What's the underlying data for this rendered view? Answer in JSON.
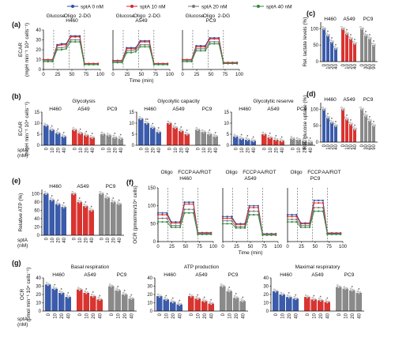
{
  "legend": [
    {
      "name": "sptA 0 nM",
      "color": "#2c4fa3"
    },
    {
      "name": "sptA 10 nM",
      "color": "#d8262a"
    },
    {
      "name": "sptA 20 nM",
      "color": "#777777"
    },
    {
      "name": "sptA 40 nM",
      "color": "#2f8a3c"
    }
  ],
  "colors": {
    "H460": "#3b5bab",
    "A549": "#d93430",
    "PC9": "#8a8a8a"
  },
  "panels": {
    "a": {
      "label": "(a)",
      "ylabel": "ECAR\n(mpH min⁻¹ 10⁴ cells⁻¹)",
      "yticks": [
        0,
        10,
        20,
        30,
        40
      ],
      "xticks": [
        0,
        25,
        50,
        75,
        100
      ],
      "xlabel": "Time (min)",
      "treatments": [
        "Glucose",
        "Oligo",
        "2-DG"
      ],
      "cells": [
        "H460",
        "A549",
        "PC9"
      ]
    },
    "b": {
      "label": "(b)",
      "ylabel": "ECAR\n(mpH min⁻¹ 10⁴ cells⁻¹)",
      "titles": [
        "Glycolysis",
        "Glycolytic capacity",
        "Glycolytic reserve"
      ],
      "yticks": [
        0,
        5,
        10,
        15
      ],
      "doses": [
        "0",
        "10",
        "20",
        "40"
      ],
      "xlabel": "sptA\n(nM)"
    },
    "c": {
      "label": "(c)",
      "ylabel": "Rel. lactate levels (%)",
      "yticks": [
        0,
        50,
        100
      ],
      "doses": [
        "0",
        "10",
        "20",
        "40"
      ],
      "pc9_doses": [
        "0",
        "30",
        "60",
        "90"
      ]
    },
    "d": {
      "label": "(d)",
      "ylabel": "Rel. glucose uptake (%)",
      "yticks": [
        0,
        50,
        100
      ],
      "doses": [
        "0",
        "10",
        "20",
        "40"
      ],
      "pc9_doses": [
        "0",
        "30",
        "60",
        "90"
      ]
    },
    "e": {
      "label": "(e)",
      "ylabel": "Relative ATP (%)",
      "yticks": [
        0,
        20,
        40,
        60,
        80,
        100
      ],
      "doses": [
        "0",
        "10",
        "20",
        "40"
      ],
      "xlabel": "sptA\n(nM)"
    },
    "f": {
      "label": "(f)",
      "ylabel": "OCR (pmol/min/10⁴ cells)",
      "yticks": [
        0,
        50,
        100,
        150
      ],
      "xticks": [
        0,
        25,
        50,
        75,
        100
      ],
      "xlabel": "Time (min)",
      "treatments": [
        "Oligo",
        "FCCP",
        "AA/ROT"
      ]
    },
    "g": {
      "label": "(g)",
      "ylabel": "OCR\n(pmol min⁻¹ 10⁴ cells⁻¹)",
      "titles": [
        "Basal respiration",
        "ATP production",
        "Maximal respiratory"
      ],
      "yticks": [
        0,
        10,
        20,
        30,
        40
      ],
      "doses": [
        "0",
        "10",
        "20",
        "40"
      ],
      "xlabel": "sptA\n(nM)"
    }
  },
  "chart_data": [
    {
      "panel": "a",
      "type": "line",
      "x": [
        0,
        8,
        16,
        24,
        32,
        40,
        48,
        56,
        64,
        72,
        80,
        88,
        96
      ],
      "series_by_cell": {
        "H460": [
          [
            10,
            10,
            10,
            25,
            26,
            26,
            34,
            34,
            34,
            6,
            6,
            6,
            6
          ],
          [
            10,
            10,
            10,
            24,
            25,
            25,
            33,
            33,
            33,
            6,
            6,
            6,
            6
          ],
          [
            9,
            9,
            9,
            22,
            22,
            23,
            30,
            30,
            30,
            5,
            5,
            5,
            5
          ],
          [
            8,
            8,
            8,
            20,
            20,
            21,
            28,
            28,
            28,
            5,
            5,
            5,
            5
          ]
        ],
        "A549": [
          [
            9,
            9,
            9,
            22,
            22,
            22,
            29,
            29,
            29,
            6,
            6,
            6,
            6
          ],
          [
            9,
            9,
            9,
            21,
            21,
            21,
            28,
            28,
            28,
            6,
            6,
            6,
            6
          ],
          [
            8,
            8,
            8,
            19,
            19,
            20,
            25,
            25,
            25,
            5,
            5,
            5,
            5
          ],
          [
            7,
            7,
            7,
            17,
            17,
            18,
            23,
            23,
            23,
            5,
            5,
            5,
            5
          ]
        ],
        "PC9": [
          [
            10,
            10,
            10,
            24,
            24,
            24,
            32,
            32,
            32,
            7,
            7,
            7,
            7
          ],
          [
            10,
            10,
            10,
            23,
            23,
            23,
            31,
            31,
            31,
            7,
            7,
            7,
            7
          ],
          [
            9,
            9,
            9,
            21,
            21,
            21,
            28,
            28,
            28,
            6,
            6,
            6,
            6
          ],
          [
            8,
            8,
            8,
            19,
            19,
            19,
            26,
            26,
            26,
            6,
            6,
            6,
            6
          ]
        ]
      }
    },
    {
      "panel": "b",
      "type": "bar",
      "cells": [
        "H460",
        "A549",
        "PC9"
      ],
      "groups": [
        {
          "title": "Glycolysis",
          "values": {
            "H460": [
              9,
              7,
              5.5,
              4
            ],
            "A549": [
              7,
              5.5,
              4.5,
              3.5
            ],
            "PC9": [
              5,
              4.5,
              3.5,
              3
            ]
          },
          "stars": {
            "H460": [
              "",
              "*",
              "*",
              "*"
            ],
            "A549": [
              "",
              "*",
              "*",
              "*"
            ],
            "PC9": [
              "",
              "",
              "*",
              "*"
            ]
          }
        },
        {
          "title": "Glycolytic capacity",
          "values": {
            "H460": [
              12,
              10,
              8,
              6
            ],
            "A549": [
              10,
              8,
              6.5,
              5
            ],
            "PC9": [
              7,
              6,
              5,
              4
            ]
          },
          "stars": {
            "H460": [
              "",
              "**",
              "*",
              "*"
            ],
            "A549": [
              "",
              "*",
              "*",
              "*"
            ],
            "PC9": [
              "",
              "",
              "*",
              "*"
            ]
          }
        },
        {
          "title": "Glycolytic reserve",
          "values": {
            "H460": [
              4,
              3,
              2.5,
              2
            ],
            "A549": [
              5,
              3.5,
              2.5,
              2
            ],
            "PC9": [
              3,
              2.5,
              2,
              1.5
            ]
          },
          "stars": {
            "H460": [
              "",
              "*",
              "*",
              "*"
            ],
            "A549": [
              "",
              "*",
              "*",
              "*"
            ],
            "PC9": [
              "",
              "",
              "*",
              "*"
            ]
          }
        }
      ]
    },
    {
      "panel": "c",
      "type": "bar",
      "cells": [
        "H460",
        "A549",
        "PC9"
      ],
      "values": {
        "H460": [
          100,
          80,
          60,
          40
        ],
        "A549": [
          100,
          85,
          70,
          55
        ],
        "PC9": [
          100,
          80,
          70,
          50
        ]
      },
      "stars": {
        "H460": [
          "",
          "*",
          "*",
          "*"
        ],
        "A549": [
          "",
          "*",
          "*",
          "*"
        ],
        "PC9": [
          "",
          "*",
          "*",
          "*"
        ]
      }
    },
    {
      "panel": "d",
      "type": "bar",
      "cells": [
        "H460",
        "A549",
        "PC9"
      ],
      "values": {
        "H460": [
          100,
          75,
          60,
          50
        ],
        "A549": [
          100,
          70,
          55,
          40
        ],
        "PC9": [
          100,
          80,
          65,
          50
        ]
      },
      "stars": {
        "H460": [
          "",
          "*",
          "*",
          "*"
        ],
        "A549": [
          "",
          "*",
          "*",
          "*"
        ],
        "PC9": [
          "",
          "*",
          "*",
          "*"
        ]
      }
    },
    {
      "panel": "e",
      "type": "bar",
      "cells": [
        "H460",
        "A549",
        "PC9"
      ],
      "values": {
        "H460": [
          100,
          85,
          75,
          68
        ],
        "A549": [
          100,
          80,
          70,
          60
        ],
        "PC9": [
          100,
          90,
          80,
          75
        ]
      },
      "stars": {
        "H460": [
          "",
          "*",
          "*",
          "*"
        ],
        "A549": [
          "",
          "*",
          "*",
          "*"
        ],
        "PC9": [
          "",
          "*",
          "*",
          "*"
        ]
      }
    },
    {
      "panel": "f",
      "type": "line",
      "x": [
        0,
        8,
        16,
        24,
        32,
        40,
        48,
        56,
        64,
        72,
        80,
        88,
        96
      ],
      "series_by_cell": {
        "H460": [
          [
            80,
            80,
            80,
            55,
            55,
            55,
            110,
            110,
            110,
            25,
            25,
            25,
            25
          ],
          [
            75,
            75,
            75,
            52,
            52,
            52,
            105,
            105,
            105,
            24,
            24,
            24,
            24
          ],
          [
            65,
            65,
            65,
            45,
            45,
            45,
            90,
            90,
            90,
            22,
            22,
            22,
            22
          ],
          [
            55,
            55,
            55,
            40,
            40,
            40,
            80,
            80,
            80,
            20,
            20,
            20,
            20
          ]
        ],
        "A549": [
          [
            70,
            70,
            70,
            50,
            50,
            50,
            100,
            100,
            100,
            22,
            22,
            22,
            22
          ],
          [
            65,
            65,
            65,
            48,
            48,
            48,
            95,
            95,
            95,
            21,
            21,
            21,
            21
          ],
          [
            58,
            58,
            58,
            42,
            42,
            42,
            85,
            85,
            85,
            20,
            20,
            20,
            20
          ],
          [
            50,
            50,
            50,
            38,
            38,
            38,
            75,
            75,
            75,
            18,
            18,
            18,
            18
          ]
        ],
        "PC9": [
          [
            75,
            75,
            75,
            52,
            52,
            52,
            115,
            115,
            115,
            24,
            24,
            24,
            24
          ],
          [
            70,
            70,
            70,
            50,
            50,
            50,
            108,
            108,
            108,
            23,
            23,
            23,
            23
          ],
          [
            62,
            62,
            62,
            45,
            45,
            45,
            95,
            95,
            95,
            21,
            21,
            21,
            21
          ],
          [
            55,
            55,
            55,
            40,
            40,
            40,
            85,
            85,
            85,
            20,
            20,
            20,
            20
          ]
        ]
      }
    },
    {
      "panel": "g",
      "type": "bar",
      "cells": [
        "H460",
        "A549",
        "PC9"
      ],
      "groups": [
        {
          "title": "Basal respiration",
          "values": {
            "H460": [
              32,
              27,
              22,
              17
            ],
            "A549": [
              26,
              22,
              18,
              14
            ],
            "PC9": [
              30,
              25,
              20,
              15
            ]
          },
          "stars": {
            "H460": [
              "",
              "*",
              "*",
              "*"
            ],
            "A549": [
              "",
              "*",
              "*",
              "*"
            ],
            "PC9": [
              "",
              "*",
              "*",
              "*"
            ]
          }
        },
        {
          "title": "ATP production",
          "values": {
            "H460": [
              18,
              14,
              11,
              8
            ],
            "A549": [
              18,
              15,
              12,
              9
            ],
            "PC9": [
              30,
              24,
              16,
              12
            ]
          },
          "stars": {
            "H460": [
              "",
              "*",
              "*",
              "*"
            ],
            "A549": [
              "",
              "*",
              "*",
              "*"
            ],
            "PC9": [
              "",
              "*",
              "*",
              "*"
            ]
          }
        },
        {
          "title": "Maximal respiratory",
          "values": {
            "H460": [
              24,
              20,
              17,
              15
            ],
            "A549": [
              17,
              14,
              13,
              11
            ],
            "PC9": [
              29,
              27,
              25,
              22
            ]
          },
          "stars": {
            "H460": [
              "",
              "",
              "*",
              "*"
            ],
            "A549": [
              "",
              "*",
              "*",
              "*"
            ],
            "PC9": [
              "",
              "",
              "*",
              "*"
            ]
          }
        }
      ]
    }
  ]
}
